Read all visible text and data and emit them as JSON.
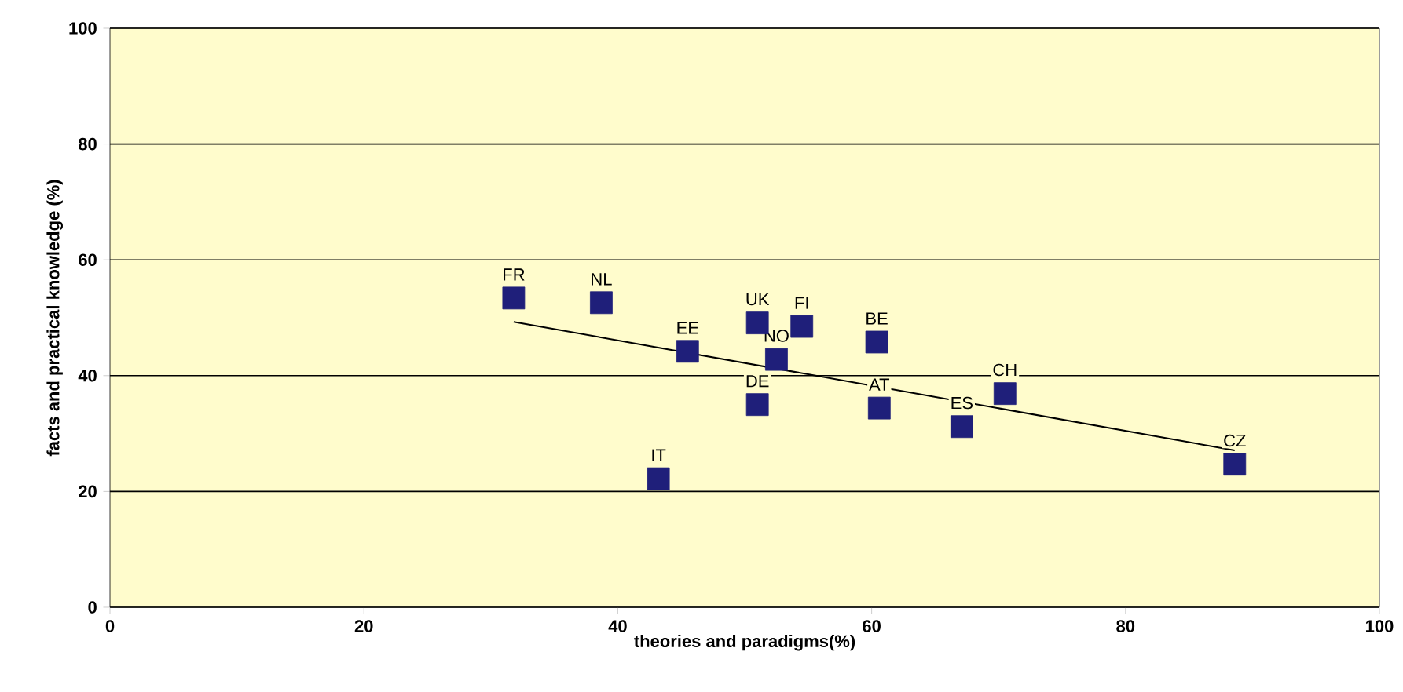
{
  "chart_data": {
    "type": "scatter",
    "xlabel": "theories and paradigms(%)",
    "ylabel": "facts and practical knowledge (%)",
    "xlim": [
      0,
      100
    ],
    "ylim": [
      0,
      100
    ],
    "xticks": [
      0,
      20,
      40,
      60,
      80,
      100
    ],
    "yticks": [
      0,
      20,
      40,
      60,
      80,
      100
    ],
    "grid": "y",
    "series": [
      {
        "marker": "square",
        "color": "#1f1f7a",
        "x": [
          31.8,
          38.7,
          45.5,
          51.0,
          54.5,
          52.5,
          51.0,
          60.4,
          60.6,
          67.1,
          70.5,
          88.6,
          43.2
        ],
        "values": [
          53.4,
          52.6,
          44.2,
          49.1,
          48.5,
          42.8,
          35.0,
          45.8,
          34.4,
          31.2,
          36.9,
          24.7,
          22.2
        ]
      },
      {
        "type": "line",
        "marker": "none",
        "color": "#000000",
        "x": [
          31.8,
          88.6
        ],
        "values": [
          49.3,
          27.1
        ]
      }
    ],
    "annotations": [
      {
        "text": "FR",
        "x": 31.8,
        "y": 53.4
      },
      {
        "text": "NL",
        "x": 38.7,
        "y": 52.6
      },
      {
        "text": "EE",
        "x": 45.5,
        "y": 44.2
      },
      {
        "text": "UK",
        "x": 51.0,
        "y": 49.1
      },
      {
        "text": "FI",
        "x": 54.5,
        "y": 48.5
      },
      {
        "text": "NO",
        "x": 52.5,
        "y": 42.8
      },
      {
        "text": "DE",
        "x": 51.0,
        "y": 35.0
      },
      {
        "text": "BE",
        "x": 60.4,
        "y": 45.8
      },
      {
        "text": "AT",
        "x": 60.6,
        "y": 34.4
      },
      {
        "text": "ES",
        "x": 67.1,
        "y": 31.2
      },
      {
        "text": "CH",
        "x": 70.5,
        "y": 36.9
      },
      {
        "text": "CZ",
        "x": 88.6,
        "y": 24.7
      },
      {
        "text": "IT",
        "x": 43.2,
        "y": 22.2
      }
    ]
  }
}
